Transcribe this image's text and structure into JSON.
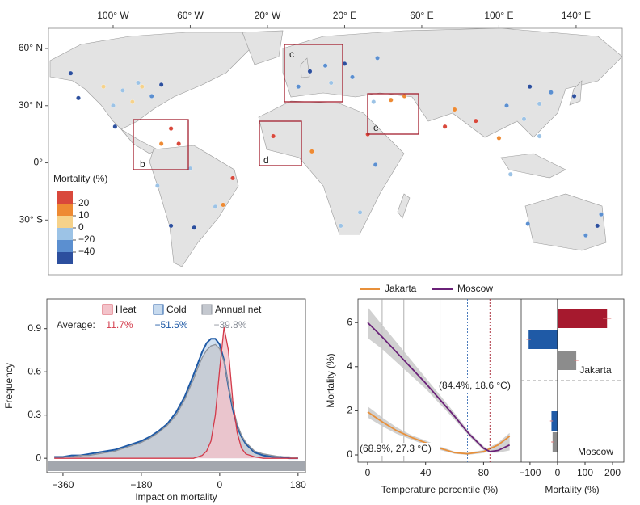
{
  "chart_data": [
    {
      "type": "map",
      "xlim": [
        -133.5,
        163.9
      ],
      "ylim": [
        -58.7,
        70.6
      ],
      "xticks": [
        {
          "value": -100,
          "label": "100° W"
        },
        {
          "value": -60,
          "label": "60° W"
        },
        {
          "value": -20,
          "label": "20° W"
        },
        {
          "value": 20,
          "label": "20° E"
        },
        {
          "value": 60,
          "label": "60° E"
        },
        {
          "value": 100,
          "label": "100° E"
        },
        {
          "value": 140,
          "label": "140° E"
        }
      ],
      "yticks": [
        {
          "value": 60,
          "label": "60° N"
        },
        {
          "value": 30,
          "label": "30° N"
        },
        {
          "value": 0,
          "label": "0°"
        },
        {
          "value": -30,
          "label": "30° S"
        }
      ],
      "legend_title": "Mortality (%)",
      "legend_ticks": [
        20,
        10,
        0,
        {
          "value": -20,
          "label": "−20"
        },
        {
          "value": -40,
          "label": "−40"
        }
      ],
      "colors": [
        "#d9483b",
        "#ee8a33",
        "#f6d28a",
        "#9cc3e6",
        "#5b8fd0",
        "#2c4f9e"
      ],
      "insets": [
        "b",
        "c",
        "d",
        "e"
      ],
      "x": [
        -80,
        -85,
        -75,
        -95,
        -90,
        -100,
        -118,
        -122,
        -105,
        -87,
        -99,
        -75,
        -70,
        -66,
        -47,
        -43,
        -58,
        -70,
        -77,
        -38,
        -60,
        2,
        10,
        13,
        -4,
        20,
        37,
        24,
        44,
        35,
        51,
        3,
        36,
        28,
        -17,
        18,
        32,
        77,
        88,
        116,
        121,
        113,
        139,
        127,
        104,
        106,
        100,
        121,
        72,
        151,
        145,
        115,
        153
      ],
      "y": [
        35,
        40,
        41,
        38,
        32,
        30,
        34,
        47,
        40,
        42,
        19,
        10,
        18,
        10,
        -23,
        -22,
        -34,
        -33,
        -12,
        -8,
        -3,
        48,
        51,
        42,
        40,
        52,
        55,
        45,
        33,
        32,
        35,
        6,
        -1,
        -26,
        14,
        -33,
        15,
        28,
        22,
        40,
        31,
        23,
        35,
        37,
        30,
        -6,
        13,
        14,
        19,
        -33,
        -38,
        -32,
        -27
      ],
      "values": [
        -30,
        5,
        -45,
        -10,
        8,
        -20,
        -50,
        -45,
        2,
        -15,
        -45,
        15,
        25,
        22,
        -15,
        12,
        -45,
        -50,
        -10,
        25,
        -5,
        -45,
        -30,
        -20,
        -35,
        -50,
        -40,
        -25,
        18,
        -10,
        10,
        12,
        -30,
        -20,
        22,
        -15,
        25,
        15,
        20,
        -45,
        -5,
        -10,
        -45,
        -40,
        -30,
        -5,
        10,
        -20,
        25,
        -45,
        -40,
        -30,
        -25
      ]
    },
    {
      "type": "density",
      "xlim": [
        -397,
        197
      ],
      "ylim": [
        -0.1,
        1.106
      ],
      "xticks": [
        {
          "value": -360,
          "label": "−360"
        },
        {
          "value": -180,
          "label": "−180"
        },
        0,
        180
      ],
      "yticks": [
        0,
        0.3,
        0.6,
        0.9
      ],
      "xlabel": "Impact on mortality",
      "ylabel": "Frequency",
      "average_label": "Average:",
      "x": [
        -380,
        -360,
        -340,
        -320,
        -300,
        -280,
        -260,
        -240,
        -220,
        -200,
        -180,
        -160,
        -140,
        -120,
        -100,
        -80,
        -60,
        -50,
        -40,
        -30,
        -20,
        -10,
        0,
        10,
        20,
        30,
        40,
        50,
        60,
        80,
        100,
        120,
        140,
        160,
        180
      ],
      "series": [
        {
          "name": "Heat",
          "color": "#d33a4a",
          "fill": "#f3c3ca",
          "average": "11.7%",
          "values": [
            0,
            0,
            0,
            0,
            0,
            0,
            0,
            0,
            0,
            0,
            0,
            0,
            0,
            0,
            0,
            0,
            0,
            0.01,
            0.02,
            0.05,
            0.12,
            0.3,
            0.62,
            0.91,
            0.75,
            0.4,
            0.18,
            0.07,
            0.03,
            0.01,
            0,
            0,
            0,
            0,
            0
          ]
        },
        {
          "name": "Cold",
          "color": "#1f5aa6",
          "fill": "#c7daee",
          "average": "−51.5%",
          "values": [
            0.01,
            0.01,
            0.02,
            0.02,
            0.03,
            0.04,
            0.05,
            0.06,
            0.08,
            0.1,
            0.12,
            0.15,
            0.19,
            0.24,
            0.32,
            0.43,
            0.58,
            0.66,
            0.74,
            0.8,
            0.83,
            0.83,
            0.79,
            0.68,
            0.5,
            0.34,
            0.22,
            0.15,
            0.1,
            0.04,
            0.02,
            0.01,
            0.01,
            0,
            0
          ]
        },
        {
          "name": "Annual net",
          "color": "#8d929b",
          "fill": "#c4c8cf",
          "average": "−39.8%",
          "values": [
            0.01,
            0.01,
            0.01,
            0.02,
            0.02,
            0.03,
            0.04,
            0.05,
            0.07,
            0.09,
            0.11,
            0.14,
            0.18,
            0.23,
            0.3,
            0.41,
            0.55,
            0.63,
            0.7,
            0.75,
            0.78,
            0.79,
            0.76,
            0.67,
            0.51,
            0.36,
            0.24,
            0.16,
            0.11,
            0.05,
            0.03,
            0.02,
            0.01,
            0.01,
            0
          ]
        }
      ]
    },
    {
      "type": "line",
      "xlim": [
        -6.7,
        106
      ],
      "ylim": [
        -0.33,
        7.07
      ],
      "xticks": [
        0,
        40,
        80
      ],
      "yticks": [
        0,
        2,
        4,
        6
      ],
      "xlabel": "Temperature percentile (%)",
      "ylabel": "Mortality (%)",
      "reference_lines": [
        10,
        25,
        50
      ],
      "series": [
        {
          "name": "Jakarta",
          "color": "#e8903a",
          "optimum": 68.9,
          "annotation": "(68.9%, 27.3 °C)",
          "x": [
            0,
            10,
            20,
            30,
            40,
            50,
            60,
            68.9,
            80,
            90,
            98
          ],
          "values": [
            1.95,
            1.5,
            1.1,
            0.8,
            0.55,
            0.3,
            0.1,
            0.05,
            0.15,
            0.45,
            0.85
          ],
          "ci_lower": [
            1.7,
            1.3,
            0.95,
            0.7,
            0.45,
            0.22,
            0.05,
            0,
            0.08,
            0.35,
            0.7
          ],
          "ci_upper": [
            2.2,
            1.7,
            1.25,
            0.9,
            0.65,
            0.38,
            0.15,
            0.1,
            0.22,
            0.55,
            1.0
          ]
        },
        {
          "name": "Moscow",
          "color": "#6a2178",
          "optimum": 84.4,
          "annotation": "(84.4%, 18.6 °C)",
          "x": [
            0,
            10,
            20,
            30,
            40,
            50,
            60,
            70,
            80,
            84.4,
            90,
            98
          ],
          "values": [
            6.0,
            5.35,
            4.65,
            3.95,
            3.25,
            2.5,
            1.75,
            0.95,
            0.3,
            0.15,
            0.2,
            0.45
          ],
          "ci_lower": [
            5.3,
            4.8,
            4.2,
            3.6,
            3.0,
            2.3,
            1.6,
            0.85,
            0.22,
            0.1,
            0.1,
            0.2
          ],
          "ci_upper": [
            6.7,
            5.9,
            5.1,
            4.3,
            3.5,
            2.7,
            1.9,
            1.05,
            0.4,
            0.2,
            0.35,
            0.7
          ]
        }
      ]
    },
    {
      "type": "bar",
      "orientation": "horizontal",
      "categories": [
        "Jakarta",
        "Moscow"
      ],
      "xlim": [
        -132,
        241
      ],
      "xticks": [
        {
          "value": -100,
          "label": "−100"
        },
        0,
        100,
        200
      ],
      "xlabel": "Mortality (%)",
      "series": [
        {
          "color": "#a6192e",
          "values": [
            180,
            2
          ],
          "errors": [
            15,
            1
          ]
        },
        {
          "color": "#1f5aa6",
          "values": [
            -105,
            -22
          ],
          "errors": [
            8,
            5
          ]
        },
        {
          "color": "#8c8c8c",
          "values": [
            68,
            -18
          ],
          "errors": [
            8,
            5
          ]
        }
      ]
    }
  ]
}
